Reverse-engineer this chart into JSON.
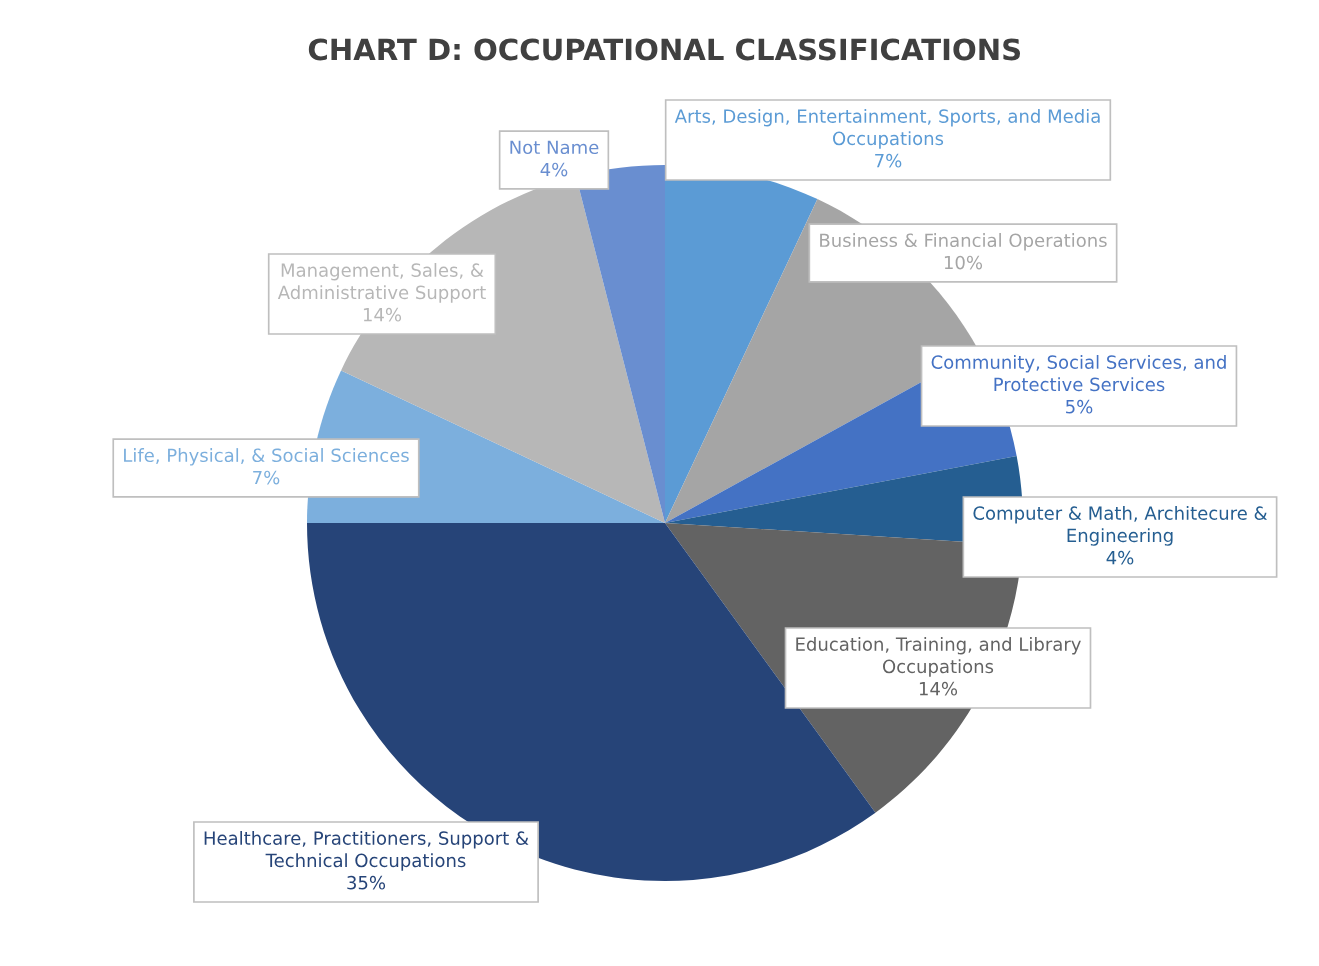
{
  "chart_data": {
    "type": "pie",
    "title": "CHART D: OCCUPATIONAL CLASSIFICATIONS",
    "categories": [
      "Arts, Design, Entertainment, Sports, and Media Occupations",
      "Business & Financial Operations",
      "Community, Social Services, and Protective Services",
      "Computer & Math, Architecure & Engineering",
      "Education, Training, and Library Occupations",
      "Healthcare, Practitioners, Support & Technical Occupations",
      "Life, Physical, & Social Sciences",
      "Management, Sales, & Administrative Support",
      "Not Name"
    ],
    "values": [
      7,
      10,
      5,
      4,
      14,
      35,
      7,
      14,
      4
    ],
    "value_labels": [
      "7%",
      "10%",
      "5%",
      "4%",
      "14%",
      "35%",
      "7%",
      "14%",
      "4%"
    ],
    "colors": [
      "#5b9bd5",
      "#a5a5a5",
      "#4472c4",
      "#255e91",
      "#636363",
      "#264478",
      "#7cafdd",
      "#b7b7b7",
      "#698ed0"
    ],
    "legend": false
  }
}
